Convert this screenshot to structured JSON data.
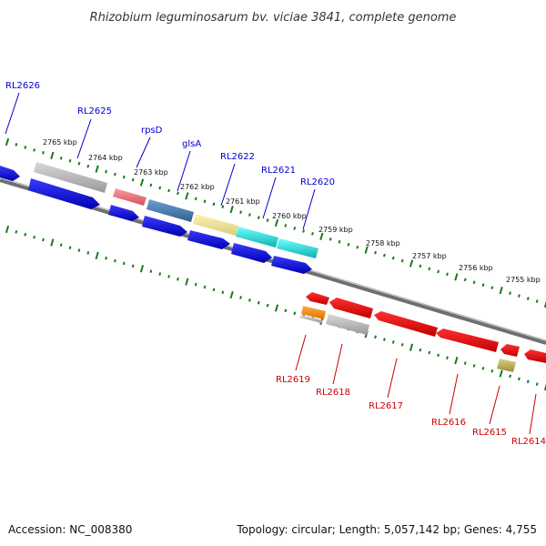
{
  "title": "Rhizobium leguminosarum bv. viciae 3841, complete genome",
  "footer": {
    "accession": "Accession: NC_008380",
    "topology": "Topology: circular; Length: 5,057,142 bp; Genes: 4,755"
  },
  "colors": {
    "forward_label": "#0000cc",
    "reverse_label": "#cc0000",
    "tick": "#1a7a1a",
    "backbone": "#777777"
  },
  "scale_labels": [
    "2765 kbp",
    "2764 kbp",
    "2763 kbp",
    "2762 kbp",
    "2761 kbp",
    "2760 kbp",
    "2759 kbp",
    "2758 kbp",
    "2757 kbp",
    "2756 kbp",
    "2755 kbp"
  ],
  "forward_gene_labels": [
    "RL2626",
    "RL2625",
    "rpsD",
    "glsA",
    "RL2622",
    "RL2621",
    "RL2620"
  ],
  "reverse_gene_labels": [
    "RL2619",
    "RL2618",
    "RL2617",
    "RL2616",
    "RL2615",
    "RL2614"
  ]
}
